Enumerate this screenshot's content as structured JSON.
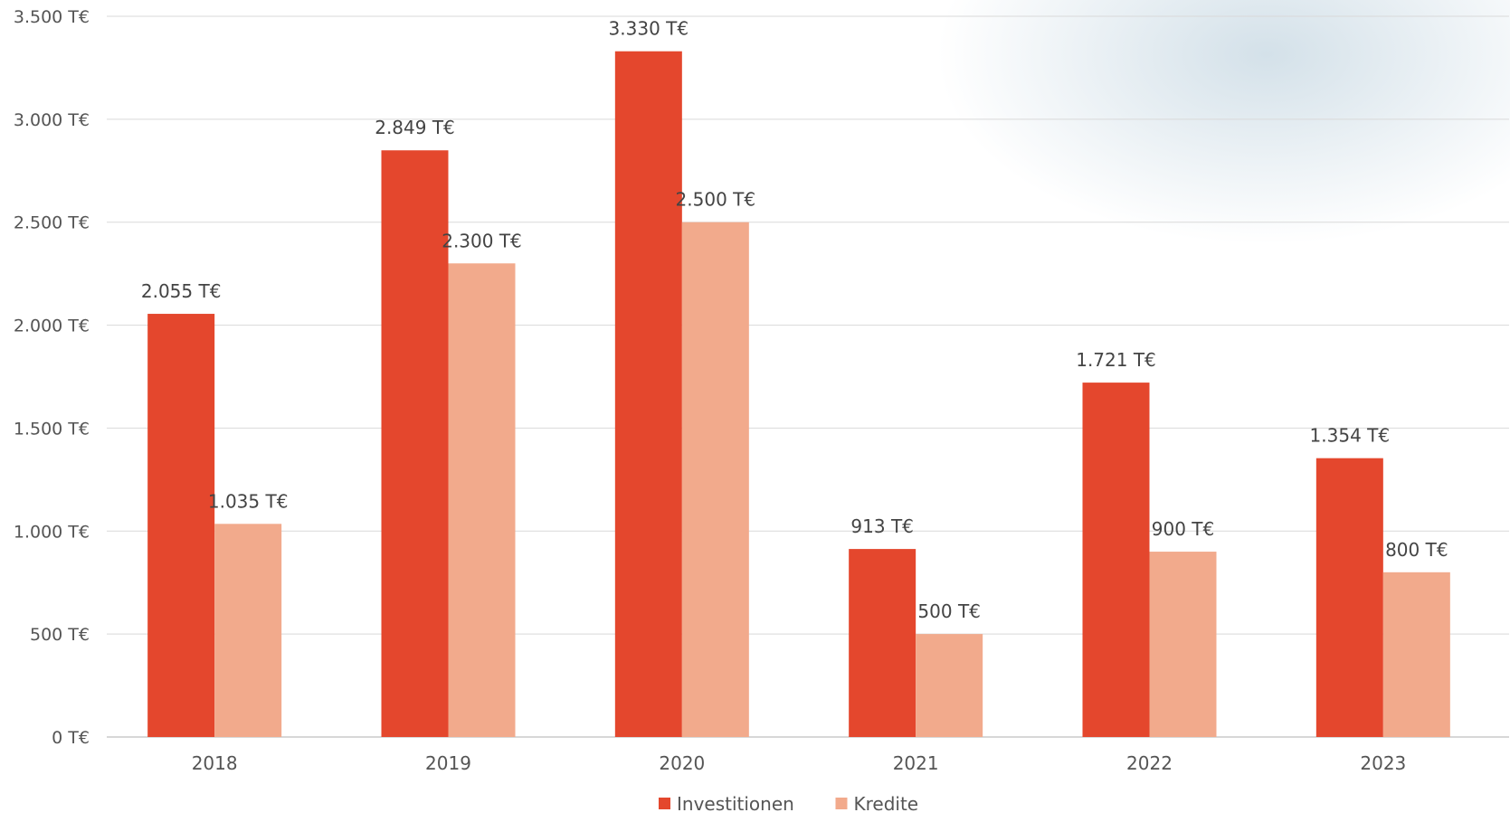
{
  "chart_data": {
    "type": "bar",
    "categories": [
      "2018",
      "2019",
      "2020",
      "2021",
      "2022",
      "2023"
    ],
    "series": [
      {
        "name": "Investitionen",
        "color": "#e4472d",
        "values": [
          2055,
          2849,
          3330,
          913,
          1721,
          1354
        ],
        "labels": [
          "2.055 T€",
          "2.849 T€",
          "3.330 T€",
          "913 T€",
          "1.721 T€",
          "1.354 T€"
        ]
      },
      {
        "name": "Kredite",
        "color": "#f2aa8c",
        "values": [
          1035,
          2300,
          2500,
          500,
          900,
          800
        ],
        "labels": [
          "1.035 T€",
          "2.300 T€",
          "2.500 T€",
          "500 T€",
          "900 T€",
          "800 T€"
        ]
      }
    ],
    "ylim": [
      0,
      3500
    ],
    "yticks": [
      0,
      500,
      1000,
      1500,
      2000,
      2500,
      3000,
      3500
    ],
    "ytick_labels": [
      "0 T€",
      "500 T€",
      "1.000 T€",
      "1.500 T€",
      "2.000 T€",
      "2.500 T€",
      "3.000 T€",
      "3.500 T€"
    ],
    "grid": true,
    "legend_position": "bottom-center"
  }
}
